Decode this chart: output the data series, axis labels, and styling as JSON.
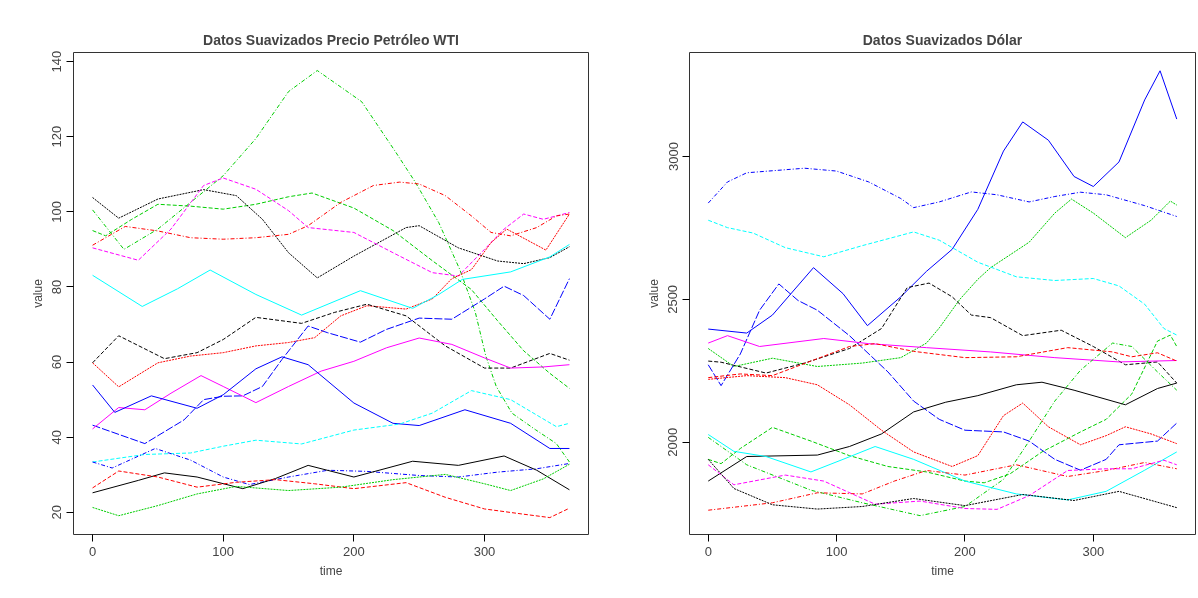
{
  "chart_data": [
    {
      "type": "line",
      "title": "Datos Suavizados Precio Petróleo WTI",
      "xlabel": "time",
      "ylabel": "value",
      "xlim": [
        -14.6,
        379.6
      ],
      "ylim": [
        14.1,
        142.4
      ],
      "xticks": [
        0,
        100,
        200,
        300
      ],
      "yticks": [
        20,
        40,
        60,
        80,
        100,
        120,
        140
      ],
      "series": [
        {
          "color": "#00cd00",
          "line_style": "dotdash",
          "x": [
            0,
            24,
            50,
            75,
            100,
            125,
            150,
            172,
            206,
            232,
            247,
            265,
            281,
            293,
            301,
            309,
            321,
            339,
            355,
            365
          ],
          "values": [
            100.5,
            90,
            95.4,
            102.5,
            109.6,
            119.5,
            132,
            137.6,
            129.3,
            115.9,
            107.9,
            97.1,
            84.7,
            73.2,
            61.6,
            53.5,
            46.4,
            42,
            38.3,
            33.4
          ]
        },
        {
          "color": "#00cd00",
          "line_style": "dashed",
          "x": [
            0,
            10,
            30,
            50,
            75,
            100,
            125,
            150,
            168,
            200,
            230,
            260,
            290,
            310,
            330,
            350,
            365
          ],
          "values": [
            95,
            93.6,
            98,
            102,
            101.5,
            100.7,
            102,
            104,
            105,
            101,
            95,
            87,
            79.3,
            71,
            63,
            57,
            53
          ]
        },
        {
          "color": "#000000",
          "line_style": "dotted",
          "x": [
            0,
            20,
            50,
            85,
            110,
            130,
            150,
            172,
            200,
            240,
            250,
            280,
            310,
            330,
            350,
            365
          ],
          "values": [
            103.8,
            98.3,
            103.4,
            105.9,
            104.3,
            98,
            89.1,
            82.4,
            88.2,
            95.8,
            96.3,
            90.4,
            86.9,
            86.2,
            87.8,
            90.7
          ]
        },
        {
          "color": "#ff00ff",
          "line_style": "dashed",
          "x": [
            0,
            35,
            60,
            85,
            100,
            125,
            150,
            165,
            200,
            230,
            260,
            280,
            300,
            315,
            330,
            345,
            365
          ],
          "values": [
            90.4,
            87.1,
            95.4,
            107,
            109,
            106,
            100.3,
            95.8,
            94.5,
            89.1,
            83.8,
            82.9,
            90,
            95.4,
            99.4,
            98,
            99.8
          ]
        },
        {
          "color": "#ff0000",
          "line_style": "dotdash",
          "x": [
            0,
            25,
            50,
            75,
            100,
            125,
            150,
            165,
            190,
            215,
            235,
            250,
            270,
            290,
            305,
            320,
            340,
            355,
            365
          ],
          "values": [
            91.1,
            96.1,
            94.9,
            93.1,
            92.7,
            93.1,
            94,
            96.3,
            102.5,
            107,
            107.9,
            107.4,
            104.3,
            98.9,
            94.5,
            93.6,
            95.8,
            98.9,
            99.4
          ]
        },
        {
          "color": "#ff0000",
          "line_style": "dotted",
          "x": [
            0,
            20,
            50,
            75,
            100,
            125,
            150,
            170,
            190,
            210,
            240,
            260,
            275,
            290,
            305,
            317,
            347,
            365
          ],
          "values": [
            59.8,
            53.4,
            59.8,
            61.6,
            62.5,
            64.3,
            65.2,
            66.5,
            72.3,
            75,
            74.1,
            76.8,
            82.2,
            84.6,
            91.8,
            95.4,
            89.8,
            99.4
          ]
        },
        {
          "color": "#00ffff",
          "line_style": "solid",
          "x": [
            0,
            38,
            65,
            90,
            125,
            160,
            205,
            245,
            265,
            283,
            320,
            350,
            365
          ],
          "values": [
            83.1,
            74.8,
            79.5,
            84.5,
            78,
            72.5,
            79,
            74.3,
            78,
            82,
            84,
            88,
            91.3
          ]
        },
        {
          "color": "#000000",
          "line_style": "dashed",
          "x": [
            0,
            20,
            55,
            80,
            100,
            125,
            160,
            185,
            210,
            240,
            270,
            300,
            320,
            350,
            365
          ],
          "values": [
            59.8,
            67,
            60.9,
            62.5,
            66,
            71.9,
            70.3,
            73.2,
            75.4,
            72.3,
            64.3,
            58.4,
            58.4,
            62.3,
            60.5
          ]
        },
        {
          "color": "#0000ff",
          "line_style": "longdash",
          "x": [
            0,
            40,
            70,
            85,
            100,
            115,
            130,
            145,
            165,
            180,
            205,
            225,
            250,
            275,
            300,
            315,
            330,
            350,
            365
          ],
          "values": [
            43.2,
            38.3,
            44.6,
            50,
            50.9,
            51,
            53.5,
            60.7,
            69.6,
            67.8,
            65.3,
            68.7,
            71.7,
            71.4,
            76.8,
            80.2,
            77.7,
            71.4,
            82.2
          ]
        },
        {
          "color": "#ff00ff",
          "line_style": "solid",
          "x": [
            0,
            20,
            40,
            60,
            83,
            100,
            125,
            150,
            175,
            200,
            225,
            250,
            275,
            300,
            320,
            345,
            365
          ],
          "values": [
            42.2,
            47.9,
            47.3,
            51.7,
            56.4,
            53.5,
            49.2,
            53.5,
            57.6,
            60.2,
            63.8,
            66.4,
            64.7,
            61.1,
            58.4,
            58.7,
            59.3
          ]
        },
        {
          "color": "#0000ff",
          "line_style": "solid",
          "x": [
            0,
            17,
            45,
            80,
            100,
            125,
            145,
            165,
            200,
            230,
            250,
            285,
            320,
            350,
            365
          ],
          "values": [
            53.9,
            46.6,
            51,
            47.7,
            51.3,
            58.2,
            61.4,
            59.3,
            49.1,
            43.7,
            43.1,
            47.3,
            43.7,
            37,
            37
          ]
        },
        {
          "color": "#00ffff",
          "line_style": "dashed",
          "x": [
            0,
            40,
            75,
            100,
            125,
            160,
            200,
            235,
            260,
            290,
            320,
            355,
            365
          ],
          "values": [
            33.4,
            35.4,
            35.8,
            37.6,
            39.2,
            38.2,
            41.9,
            43.5,
            46.4,
            52.4,
            50,
            42.8,
            43.7
          ]
        },
        {
          "color": "#0000ff",
          "line_style": "dotdash",
          "x": [
            0,
            15,
            48,
            75,
            100,
            120,
            150,
            180,
            210,
            250,
            280,
            310,
            340,
            365
          ],
          "values": [
            33.4,
            31.8,
            37,
            33.9,
            29.4,
            27.4,
            29.4,
            31.2,
            30.9,
            29.8,
            29.4,
            30.7,
            31.6,
            33
          ]
        },
        {
          "color": "#000000",
          "line_style": "solid",
          "x": [
            0,
            35,
            55,
            80,
            115,
            140,
            165,
            200,
            245,
            280,
            315,
            340,
            365
          ],
          "values": [
            25.2,
            28.5,
            30.5,
            29.4,
            26.3,
            29,
            32.5,
            29.4,
            33.6,
            32.5,
            35,
            31.2,
            26
          ]
        },
        {
          "color": "#ff0000",
          "line_style": "dashed",
          "x": [
            0,
            20,
            50,
            80,
            110,
            140,
            170,
            200,
            240,
            270,
            300,
            330,
            350,
            365
          ],
          "values": [
            26.5,
            31,
            29.4,
            26.7,
            28,
            28.7,
            27.6,
            26.3,
            27.9,
            24,
            20.9,
            19.5,
            18.6,
            21.1
          ]
        },
        {
          "color": "#00cd00",
          "line_style": "dotted",
          "x": [
            0,
            20,
            50,
            80,
            110,
            150,
            190,
            230,
            270,
            300,
            320,
            345,
            365
          ],
          "values": [
            21.3,
            19.1,
            21.8,
            24.9,
            26.9,
            25.8,
            26.7,
            28.7,
            30.1,
            27.6,
            25.8,
            28.9,
            32.8
          ]
        }
      ]
    },
    {
      "type": "line",
      "title": "Datos Suavizados Dólar",
      "xlabel": "time",
      "ylabel": "value",
      "xlim": [
        -14.6,
        379.6
      ],
      "ylim": [
        1677,
        3364
      ],
      "xticks": [
        0,
        100,
        200,
        300
      ],
      "yticks": [
        2000,
        2500,
        3000
      ],
      "series": [
        {
          "color": "#0000ff",
          "line_style": "solid",
          "x": [
            0,
            30,
            50,
            82,
            105,
            124,
            150,
            170,
            190,
            210,
            230,
            245,
            265,
            285,
            300,
            320,
            340,
            352,
            365
          ],
          "values": [
            2396,
            2382,
            2445,
            2611,
            2520,
            2408,
            2509,
            2598,
            2675,
            2815,
            3019,
            3121,
            3057,
            2930,
            2895,
            2981,
            3198,
            3300,
            3131
          ]
        },
        {
          "color": "#0000ff",
          "line_style": "dotdash",
          "x": [
            0,
            15,
            30,
            75,
            100,
            125,
            150,
            160,
            180,
            205,
            225,
            250,
            270,
            290,
            310,
            340,
            365
          ],
          "values": [
            2837,
            2911,
            2943,
            2959,
            2949,
            2911,
            2853,
            2821,
            2841,
            2876,
            2866,
            2841,
            2860,
            2875,
            2866,
            2828,
            2790
          ]
        },
        {
          "color": "#00cd00",
          "line_style": "dotted",
          "x": [
            0,
            20,
            50,
            85,
            120,
            150,
            170,
            180,
            196,
            210,
            220,
            250,
            270,
            283,
            300,
            325,
            345,
            360,
            365
          ],
          "values": [
            2328,
            2265,
            2294,
            2265,
            2277,
            2296,
            2347,
            2400,
            2500,
            2570,
            2611,
            2700,
            2802,
            2851,
            2802,
            2716,
            2777,
            2844,
            2830
          ]
        },
        {
          "color": "#00ffff",
          "line_style": "dashed",
          "x": [
            0,
            15,
            35,
            60,
            90,
            120,
            160,
            180,
            210,
            240,
            270,
            300,
            320,
            340,
            355,
            365
          ],
          "values": [
            2777,
            2751,
            2732,
            2681,
            2649,
            2688,
            2736,
            2707,
            2630,
            2579,
            2566,
            2573,
            2547,
            2483,
            2398,
            2375
          ]
        },
        {
          "color": "#000000",
          "line_style": "dashed",
          "x": [
            0,
            10,
            45,
            75,
            110,
            135,
            155,
            172,
            190,
            205,
            220,
            245,
            275,
            300,
            325,
            350,
            365
          ],
          "values": [
            2284,
            2280,
            2242,
            2277,
            2328,
            2398,
            2541,
            2557,
            2509,
            2445,
            2436,
            2373,
            2392,
            2335,
            2271,
            2281,
            2207
          ]
        },
        {
          "color": "#0000ff",
          "line_style": "longdash",
          "x": [
            0,
            10,
            25,
            40,
            55,
            70,
            85,
            110,
            140,
            160,
            180,
            200,
            230,
            250,
            270,
            290,
            310,
            320,
            350,
            365
          ],
          "values": [
            2271,
            2198,
            2309,
            2462,
            2554,
            2496,
            2462,
            2373,
            2246,
            2144,
            2080,
            2042,
            2036,
            2004,
            1940,
            1902,
            1940,
            1991,
            2004,
            2067
          ]
        },
        {
          "color": "#ff00ff",
          "line_style": "solid",
          "x": [
            0,
            15,
            40,
            90,
            125,
            170,
            220,
            270,
            320,
            365
          ],
          "values": [
            2347,
            2373,
            2335,
            2363,
            2345,
            2331,
            2316,
            2296,
            2281,
            2286
          ]
        },
        {
          "color": "#ff0000",
          "line_style": "dashed",
          "x": [
            0,
            25,
            50,
            80,
            110,
            130,
            160,
            200,
            240,
            280,
            315,
            330,
            350,
            365
          ],
          "values": [
            2226,
            2239,
            2233,
            2284,
            2335,
            2345,
            2318,
            2296,
            2299,
            2331,
            2316,
            2299,
            2313,
            2284
          ]
        },
        {
          "color": "#00cd00",
          "line_style": "dashed",
          "x": [
            0,
            10,
            25,
            50,
            80,
            110,
            140,
            170,
            200,
            215,
            235,
            260,
            290,
            310,
            330,
            350,
            360,
            365
          ],
          "values": [
            1940,
            1925,
            1978,
            2052,
            2004,
            1953,
            1915,
            1896,
            1864,
            1858,
            1889,
            1966,
            2036,
            2080,
            2169,
            2354,
            2375,
            2335
          ]
        },
        {
          "color": "#00cd00",
          "line_style": "dotdash",
          "x": [
            0,
            30,
            80,
            120,
            165,
            200,
            230,
            250,
            270,
            290,
            315,
            330,
            350,
            365
          ],
          "values": [
            2017,
            1921,
            1832,
            1788,
            1743,
            1775,
            1870,
            2004,
            2144,
            2252,
            2347,
            2335,
            2246,
            2182
          ]
        },
        {
          "color": "#000000",
          "line_style": "solid",
          "x": [
            0,
            30,
            85,
            110,
            135,
            160,
            185,
            210,
            240,
            260,
            285,
            325,
            350,
            365
          ],
          "values": [
            1864,
            1950,
            1955,
            1985,
            2029,
            2106,
            2140,
            2163,
            2201,
            2210,
            2182,
            2131,
            2188,
            2207
          ]
        },
        {
          "color": "#ff0000",
          "line_style": "dotted",
          "x": [
            0,
            30,
            60,
            85,
            110,
            135,
            160,
            190,
            210,
            230,
            245,
            265,
            290,
            310,
            325,
            345,
            365
          ],
          "values": [
            2220,
            2233,
            2226,
            2201,
            2131,
            2042,
            1966,
            1915,
            1953,
            2093,
            2137,
            2054,
            1991,
            2023,
            2054,
            2029,
            1995
          ]
        },
        {
          "color": "#00ffff",
          "line_style": "solid",
          "x": [
            0,
            20,
            45,
            80,
            105,
            130,
            160,
            200,
            240,
            280,
            310,
            340,
            365
          ],
          "values": [
            2027,
            1968,
            1950,
            1896,
            1940,
            1985,
            1940,
            1864,
            1819,
            1798,
            1828,
            1902,
            1966
          ]
        },
        {
          "color": "#ff0000",
          "line_style": "dotdash",
          "x": [
            0,
            50,
            85,
            120,
            145,
            170,
            200,
            240,
            280,
            310,
            340,
            365
          ],
          "values": [
            1762,
            1788,
            1823,
            1819,
            1864,
            1901,
            1885,
            1921,
            1880,
            1901,
            1929,
            1907
          ]
        },
        {
          "color": "#ff00ff",
          "line_style": "dashed",
          "x": [
            0,
            20,
            60,
            90,
            130,
            165,
            200,
            225,
            250,
            280,
            310,
            330,
            355,
            365
          ],
          "values": [
            1921,
            1851,
            1885,
            1864,
            1783,
            1794,
            1768,
            1765,
            1813,
            1901,
            1907,
            1907,
            1937,
            1921
          ]
        },
        {
          "color": "#000000",
          "line_style": "dotted",
          "x": [
            0,
            20,
            50,
            85,
            120,
            160,
            200,
            245,
            285,
            320,
            365
          ],
          "values": [
            1940,
            1838,
            1781,
            1766,
            1775,
            1803,
            1778,
            1817,
            1796,
            1828,
            1771
          ]
        }
      ]
    }
  ]
}
